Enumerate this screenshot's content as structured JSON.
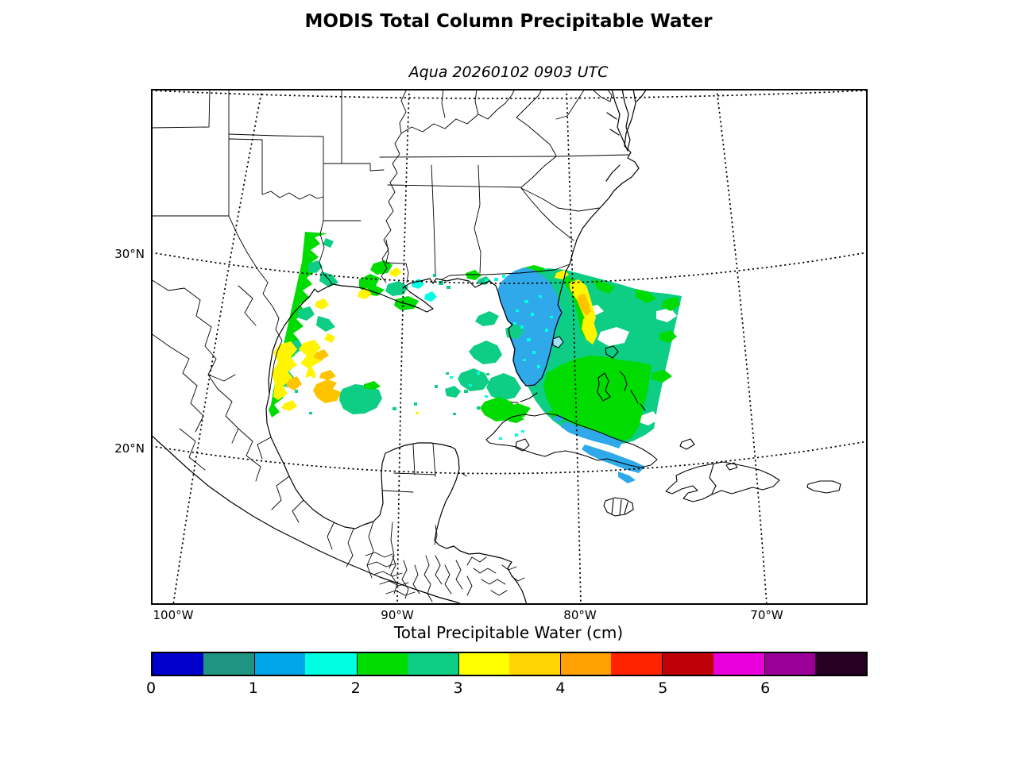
{
  "header": {
    "title": "MODIS Total Column Precipitable Water",
    "subtitle": "Aqua 20260102 0903 UTC"
  },
  "map": {
    "lat_ticks": [
      "30°N",
      "20°N"
    ],
    "lon_ticks": [
      "100°W",
      "90°W",
      "80°W",
      "70°W"
    ],
    "overlay_colors": {
      "green": "#00DB00",
      "teal": "#0DCE84",
      "yellow": "#FFF500",
      "gold": "#FFC400",
      "cyan": "#00FFE4",
      "azure": "#2FA9E9",
      "white": "#FFFFFF",
      "lake": "#9FDFF5"
    }
  },
  "colorbar": {
    "label": "Total Precipitable Water (cm)",
    "tick_labels": [
      "0",
      "1",
      "2",
      "3",
      "4",
      "5",
      "6"
    ],
    "value_range": [
      0,
      7
    ],
    "segment_step": 0.5,
    "segment_colors": [
      "#0000CD",
      "#1E9481",
      "#00A6E8",
      "#00FFE1",
      "#00DC00",
      "#0DCE84",
      "#FFFF00",
      "#FFD400",
      "#FFA100",
      "#FF2300",
      "#BE0006",
      "#EA00DC",
      "#9A0098",
      "#260022"
    ]
  }
}
